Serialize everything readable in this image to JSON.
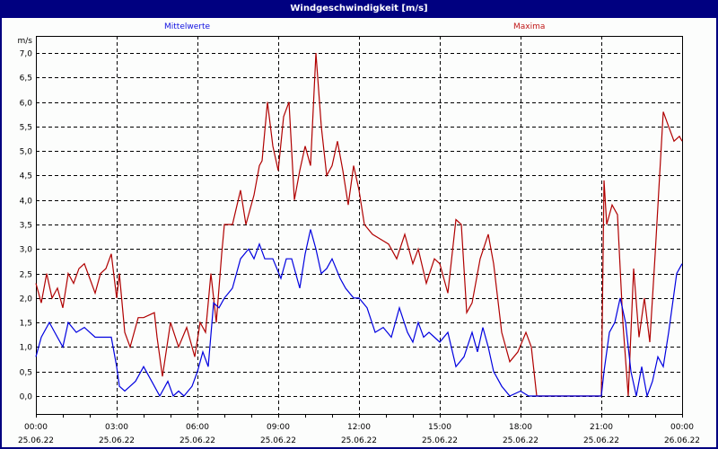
{
  "window": {
    "title": "Windgeschwindigkeit [m/s]"
  },
  "legend": {
    "mean_label": "Mittelwerte",
    "max_label": "Maxima",
    "mean_color": "#0000e0",
    "max_color": "#b00000"
  },
  "colors": {
    "titlebar": "#000080",
    "background": "#fcfdfc",
    "grid": "#000000"
  },
  "axes": {
    "y_unit": "m/s",
    "y_ticks": [
      "7,0",
      "6,5",
      "6,0",
      "5,5",
      "5,0",
      "4,5",
      "4,0",
      "3,5",
      "3,0",
      "2,5",
      "2,0",
      "1,5",
      "1,0",
      "0,5",
      "0,0"
    ],
    "x_ticks": [
      {
        "time": "00:00",
        "date": "25.06.22"
      },
      {
        "time": "03:00",
        "date": "25.06.22"
      },
      {
        "time": "06:00",
        "date": "25.06.22"
      },
      {
        "time": "09:00",
        "date": "25.06.22"
      },
      {
        "time": "12:00",
        "date": "25.06.22"
      },
      {
        "time": "15:00",
        "date": "25.06.22"
      },
      {
        "time": "18:00",
        "date": "25.06.22"
      },
      {
        "time": "21:00",
        "date": "25.06.22"
      },
      {
        "time": "00:00",
        "date": "26.06.22"
      }
    ]
  },
  "chart_data": {
    "type": "line",
    "title": "Windgeschwindigkeit [m/s]",
    "xlabel": "",
    "ylabel": "m/s",
    "ylim": [
      -0.35,
      7.2
    ],
    "xlim_hours": [
      0,
      24
    ],
    "grid": true,
    "legend_position": "top",
    "series": [
      {
        "name": "Mittelwerte",
        "color": "#0000e0",
        "x_hours": [
          0,
          0.2,
          0.5,
          0.7,
          1.0,
          1.2,
          1.5,
          1.8,
          2.0,
          2.2,
          2.4,
          2.6,
          2.8,
          3.0,
          3.1,
          3.3,
          3.5,
          3.7,
          4.0,
          4.3,
          4.6,
          4.9,
          5.1,
          5.3,
          5.5,
          5.8,
          6.0,
          6.2,
          6.4,
          6.6,
          6.8,
          7.0,
          7.3,
          7.6,
          7.9,
          8.1,
          8.3,
          8.5,
          8.6,
          8.8,
          9.1,
          9.3,
          9.5,
          9.8,
          10.0,
          10.2,
          10.4,
          10.6,
          10.8,
          11.0,
          11.3,
          11.5,
          11.8,
          12.0,
          12.3,
          12.6,
          12.9,
          13.2,
          13.5,
          13.8,
          14.0,
          14.2,
          14.4,
          14.6,
          14.8,
          15.0,
          15.3,
          15.6,
          15.9,
          16.2,
          16.4,
          16.6,
          16.8,
          17.0,
          17.3,
          17.6,
          18.0,
          18.3,
          18.6,
          19.0,
          19.5,
          20.0,
          20.5,
          21.0,
          21.1,
          21.3,
          21.5,
          21.7,
          21.9,
          22.1,
          22.3,
          22.5,
          22.7,
          22.9,
          23.1,
          23.3,
          23.5,
          23.8,
          24.0
        ],
        "values": [
          0.8,
          1.2,
          1.5,
          1.3,
          1.0,
          1.5,
          1.3,
          1.4,
          1.3,
          1.2,
          1.2,
          1.2,
          1.2,
          0.6,
          0.2,
          0.1,
          0.2,
          0.3,
          0.6,
          0.3,
          0.0,
          0.3,
          0.0,
          0.1,
          0.0,
          0.2,
          0.5,
          0.9,
          0.6,
          1.9,
          1.8,
          2.0,
          2.2,
          2.8,
          3.0,
          2.8,
          3.1,
          2.8,
          2.8,
          2.8,
          2.4,
          2.8,
          2.8,
          2.2,
          2.9,
          3.4,
          3.0,
          2.5,
          2.6,
          2.8,
          2.4,
          2.2,
          2.0,
          2.0,
          1.8,
          1.3,
          1.4,
          1.2,
          1.8,
          1.3,
          1.1,
          1.5,
          1.2,
          1.3,
          1.2,
          1.1,
          1.3,
          0.6,
          0.8,
          1.3,
          0.9,
          1.4,
          1.0,
          0.5,
          0.2,
          0.0,
          0.1,
          0.0,
          0.0,
          0.0,
          0.0,
          0.0,
          0.0,
          0.0,
          0.5,
          1.3,
          1.5,
          2.0,
          1.5,
          0.5,
          0.0,
          0.6,
          0.0,
          0.3,
          0.8,
          0.6,
          1.3,
          2.5,
          2.7
        ]
      },
      {
        "name": "Maxima",
        "color": "#b00000",
        "x_hours": [
          0,
          0.2,
          0.4,
          0.6,
          0.8,
          1.0,
          1.2,
          1.4,
          1.6,
          1.8,
          2.0,
          2.2,
          2.4,
          2.6,
          2.8,
          3.0,
          3.1,
          3.3,
          3.5,
          3.8,
          4.0,
          4.4,
          4.5,
          4.7,
          5.0,
          5.3,
          5.6,
          5.9,
          6.1,
          6.3,
          6.5,
          6.7,
          6.9,
          7.0,
          7.3,
          7.6,
          7.8,
          8.1,
          8.3,
          8.4,
          8.6,
          8.8,
          9.0,
          9.2,
          9.4,
          9.6,
          9.8,
          10.0,
          10.2,
          10.4,
          10.6,
          10.8,
          11.0,
          11.2,
          11.4,
          11.6,
          11.8,
          12.0,
          12.2,
          12.5,
          12.8,
          13.1,
          13.4,
          13.7,
          14.0,
          14.2,
          14.5,
          14.8,
          15.0,
          15.3,
          15.6,
          15.8,
          16.0,
          16.2,
          16.5,
          16.8,
          17.0,
          17.3,
          17.6,
          17.9,
          18.2,
          18.4,
          18.6,
          18.8,
          19.0,
          20.0,
          21.0,
          21.1,
          21.2,
          21.4,
          21.6,
          21.8,
          22.0,
          22.2,
          22.4,
          22.6,
          22.8,
          23.0,
          23.3,
          23.5,
          23.7,
          23.9,
          24.0
        ],
        "values": [
          2.3,
          1.9,
          2.5,
          2.0,
          2.2,
          1.8,
          2.5,
          2.3,
          2.6,
          2.7,
          2.4,
          2.1,
          2.5,
          2.6,
          2.9,
          2.0,
          2.5,
          1.3,
          1.0,
          1.6,
          1.6,
          1.7,
          1.2,
          0.4,
          1.5,
          1.0,
          1.4,
          0.8,
          1.5,
          1.3,
          2.5,
          1.5,
          2.9,
          3.5,
          3.5,
          4.2,
          3.5,
          4.1,
          4.7,
          4.8,
          6.0,
          5.1,
          4.6,
          5.7,
          6.0,
          4.0,
          4.6,
          5.1,
          4.7,
          7.0,
          5.5,
          4.5,
          4.7,
          5.2,
          4.6,
          3.9,
          4.7,
          4.2,
          3.5,
          3.3,
          3.2,
          3.1,
          2.8,
          3.3,
          2.7,
          3.0,
          2.3,
          2.8,
          2.7,
          2.1,
          3.6,
          3.5,
          1.7,
          1.9,
          2.8,
          3.3,
          2.7,
          1.3,
          0.7,
          0.9,
          1.3,
          1.0,
          0.0,
          0.0,
          0.0,
          0.0,
          0.0,
          4.4,
          3.5,
          3.9,
          3.7,
          1.5,
          0.0,
          2.6,
          1.2,
          2.0,
          1.1,
          2.9,
          5.8,
          5.5,
          5.2,
          5.3,
          5.2
        ]
      }
    ]
  }
}
